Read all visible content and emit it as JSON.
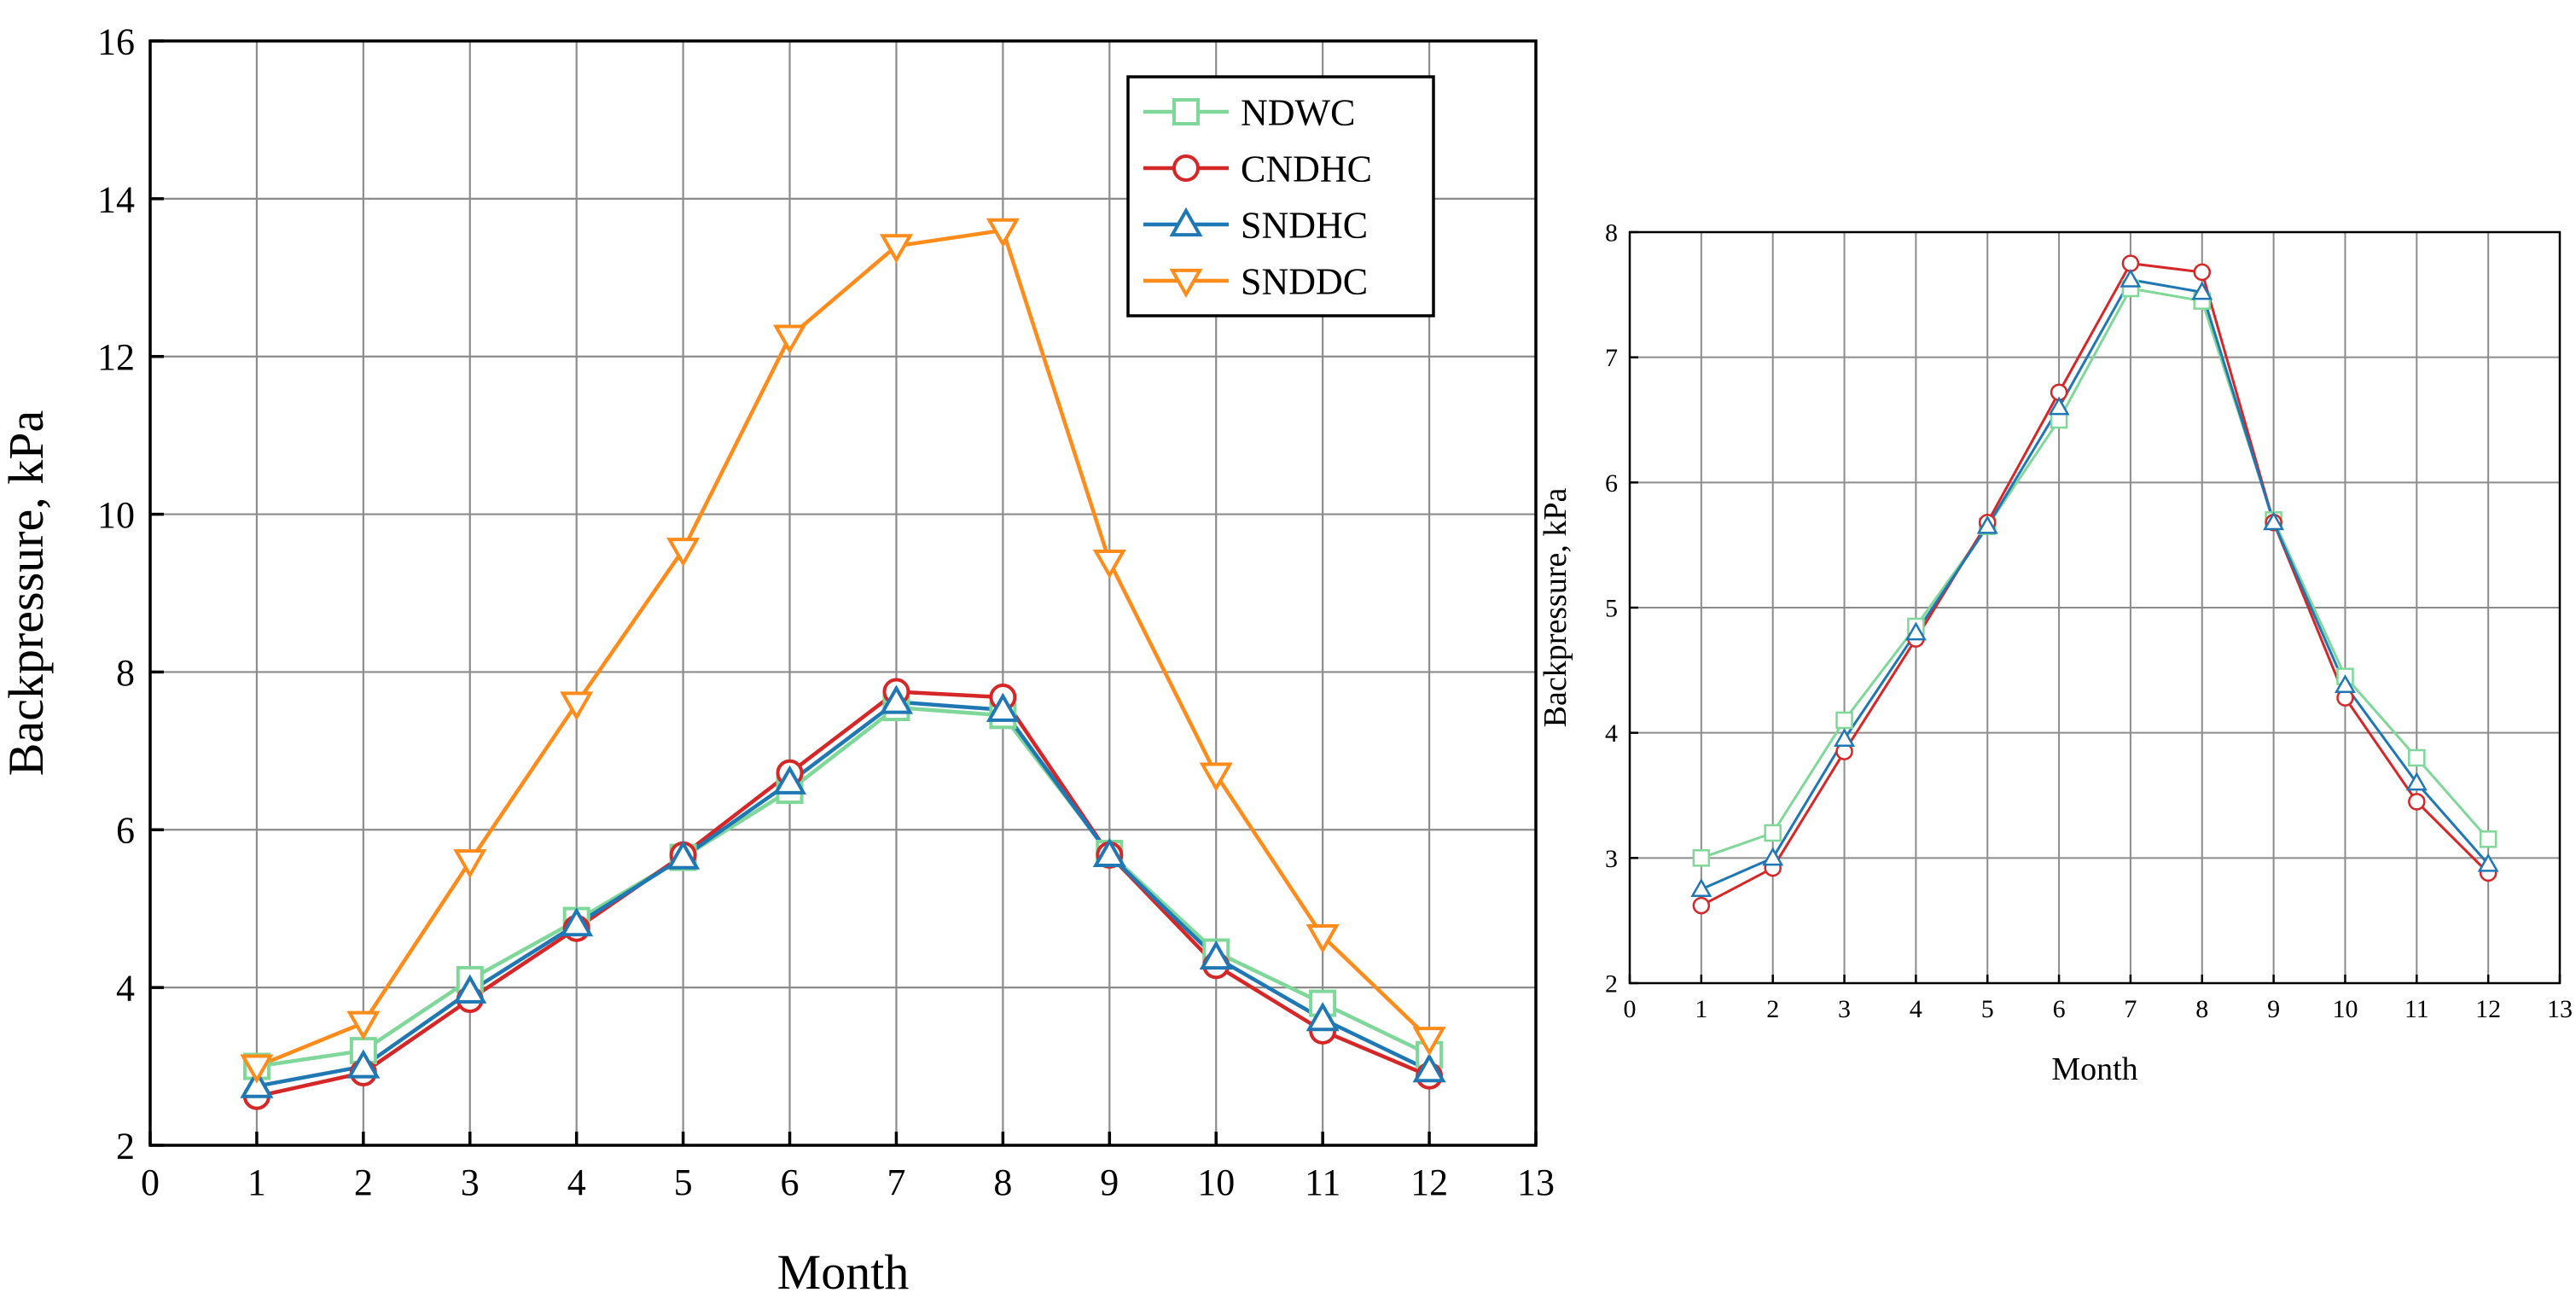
{
  "chart_data": [
    {
      "type": "line",
      "title": "",
      "xlabel": "Month",
      "ylabel": "Backpressure, kPa",
      "xlim": [
        0,
        13
      ],
      "ylim": [
        2,
        16
      ],
      "xticks": [
        0,
        1,
        2,
        3,
        4,
        5,
        6,
        7,
        8,
        9,
        10,
        11,
        12,
        13
      ],
      "yticks": [
        2,
        4,
        6,
        8,
        10,
        12,
        14,
        16
      ],
      "grid": true,
      "legend_position": "top-right",
      "x": [
        1,
        2,
        3,
        4,
        5,
        6,
        7,
        8,
        9,
        10,
        11,
        12
      ],
      "series": [
        {
          "name": "NDWC",
          "color": "#7fd89a",
          "marker": "square",
          "values": [
            3.0,
            3.2,
            4.1,
            4.85,
            5.65,
            6.5,
            7.55,
            7.45,
            5.7,
            4.45,
            3.8,
            3.15
          ]
        },
        {
          "name": "CNDHC",
          "color": "#d62728",
          "marker": "circle",
          "values": [
            2.62,
            2.92,
            3.85,
            4.75,
            5.68,
            6.72,
            7.75,
            7.68,
            5.68,
            4.28,
            3.45,
            2.88
          ]
        },
        {
          "name": "SNDHC",
          "color": "#1f77b4",
          "marker": "triangle-up",
          "values": [
            2.75,
            3.0,
            3.95,
            4.8,
            5.65,
            6.6,
            7.62,
            7.52,
            5.68,
            4.38,
            3.6,
            2.95
          ]
        },
        {
          "name": "SNDDC",
          "color": "#ff8c1a",
          "marker": "triangle-down",
          "values": [
            3.0,
            3.55,
            5.6,
            7.6,
            9.55,
            12.25,
            13.4,
            13.6,
            9.4,
            6.7,
            4.65,
            3.35
          ]
        }
      ]
    },
    {
      "type": "line",
      "title": "",
      "xlabel": "Month",
      "ylabel": "Backpressure, kPa",
      "xlim": [
        0,
        13
      ],
      "ylim": [
        2,
        8
      ],
      "xticks": [
        0,
        1,
        2,
        3,
        4,
        5,
        6,
        7,
        8,
        9,
        10,
        11,
        12,
        13
      ],
      "yticks": [
        2,
        3,
        4,
        5,
        6,
        7,
        8
      ],
      "grid": true,
      "x": [
        1,
        2,
        3,
        4,
        5,
        6,
        7,
        8,
        9,
        10,
        11,
        12
      ],
      "series": [
        {
          "name": "NDWC",
          "color": "#7fd89a",
          "marker": "square",
          "values": [
            3.0,
            3.2,
            4.1,
            4.85,
            5.65,
            6.5,
            7.55,
            7.45,
            5.7,
            4.45,
            3.8,
            3.15
          ]
        },
        {
          "name": "CNDHC",
          "color": "#d62728",
          "marker": "circle",
          "values": [
            2.62,
            2.92,
            3.85,
            4.75,
            5.68,
            6.72,
            7.75,
            7.68,
            5.68,
            4.28,
            3.45,
            2.88
          ]
        },
        {
          "name": "SNDHC",
          "color": "#1f77b4",
          "marker": "triangle-up",
          "values": [
            2.75,
            3.0,
            3.95,
            4.8,
            5.65,
            6.6,
            7.62,
            7.52,
            5.68,
            4.38,
            3.6,
            2.95
          ]
        }
      ]
    }
  ]
}
